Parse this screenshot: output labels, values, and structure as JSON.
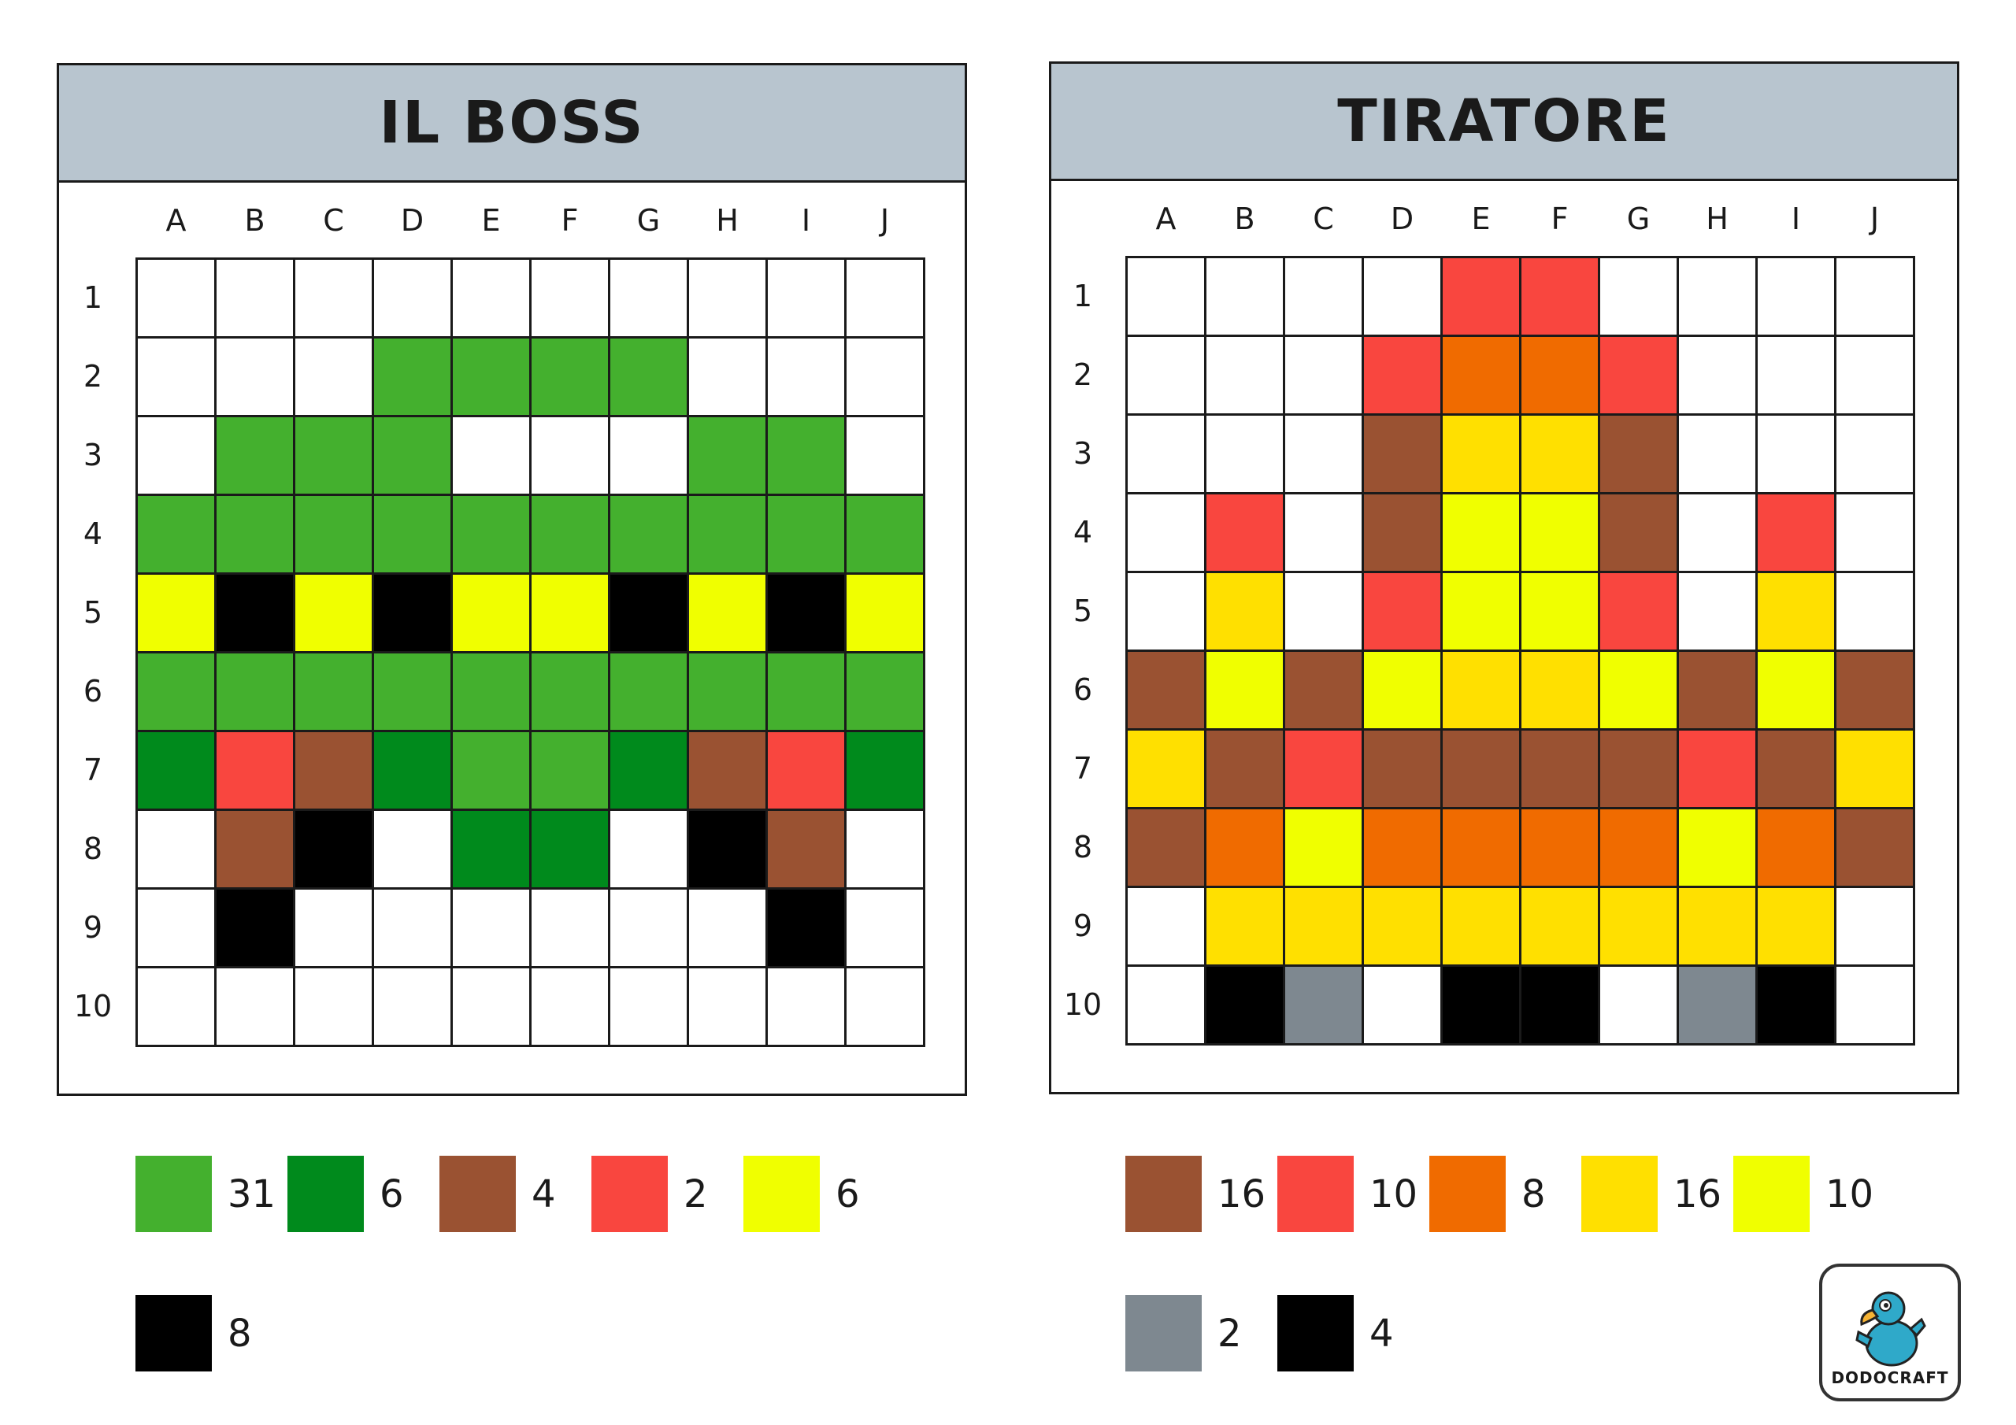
{
  "colors": {
    "W": "#ffffff",
    "G": "#44b02e",
    "D": "#008a1c",
    "N": "#9a5232",
    "R": "#f9463f",
    "Y": "#f0ff00",
    "K": "#000000",
    "O": "#f06b00",
    "L": "#ffe000",
    "S": "#7e8890"
  },
  "columns": [
    "A",
    "B",
    "C",
    "D",
    "E",
    "F",
    "G",
    "H",
    "I",
    "J"
  ],
  "rows": [
    "1",
    "2",
    "3",
    "4",
    "5",
    "6",
    "7",
    "8",
    "9",
    "10"
  ],
  "boss": {
    "title": "IL BOSS",
    "grid": [
      "WWWWWWWWWW",
      "WWWGGGGWWW",
      "WGGGWWWGGW",
      "GGGGGGGGGG",
      "YKYKYYKYKY",
      "GGGGGGGGGG",
      "DRNDGGDNRD",
      "WNKWDDWKNW",
      "WKWWWWWWKW",
      "WWWWWWWWWW"
    ],
    "legend": [
      {
        "color": "G",
        "count": "31"
      },
      {
        "color": "D",
        "count": "6"
      },
      {
        "color": "N",
        "count": "4"
      },
      {
        "color": "R",
        "count": "2"
      },
      {
        "color": "Y",
        "count": "6"
      },
      {
        "color": "K",
        "count": "8"
      }
    ]
  },
  "tiratore": {
    "title": "TIRATORE",
    "grid": [
      "WWWWRRWWWW",
      "WWWROORWWW",
      "WWWNLLNWWW",
      "WRWNYYNWRW",
      "WLWRYYRWLW",
      "NYNYLLYNYN",
      "LNRNNNNRNL",
      "NOYOOOOYON",
      "WLLLLLLLLW",
      "WKSWKKWSKW"
    ],
    "legend": [
      {
        "color": "N",
        "count": "16"
      },
      {
        "color": "R",
        "count": "10"
      },
      {
        "color": "O",
        "count": "8"
      },
      {
        "color": "L",
        "count": "16"
      },
      {
        "color": "Y",
        "count": "10"
      },
      {
        "color": "S",
        "count": "2"
      },
      {
        "color": "K",
        "count": "4"
      }
    ]
  },
  "logo": {
    "text": "DODOCRAFT",
    "icon": "dodo-bird-icon"
  }
}
